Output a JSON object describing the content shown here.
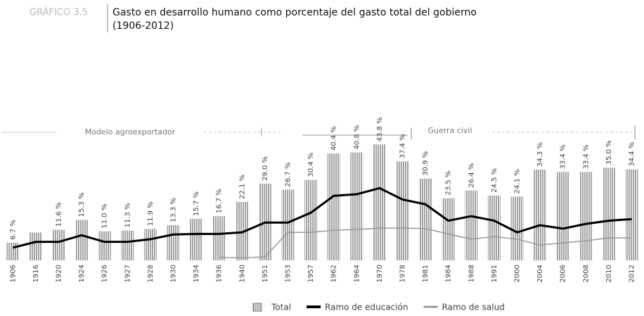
{
  "chart_data": {
    "type": "bar",
    "label": "GRÁFICO 3.5",
    "title": "Gasto en desarrollo humano como porcentaje del gasto total del gobierno",
    "subtitle": "(1906-2012)",
    "annotations": [
      "Modelo agroexportador",
      "Guerra civil"
    ],
    "categories": [
      "1906",
      "1916",
      "1920",
      "1924",
      "1926",
      "1927",
      "1928",
      "1930",
      "1934",
      "1936",
      "1940",
      "1951",
      "1953",
      "1957",
      "1962",
      "1964",
      "1970",
      "1978",
      "1981",
      "1984",
      "1988",
      "1991",
      "2000",
      "2004",
      "2006",
      "2008",
      "2010",
      "2012"
    ],
    "ylim": [
      0,
      46
    ],
    "series": [
      {
        "name": "Total",
        "type": "bar",
        "color": "#a3a3a3",
        "values": [
          6.7,
          10.5,
          11.6,
          15.3,
          11.0,
          11.3,
          11.9,
          13.3,
          15.7,
          16.7,
          22.1,
          29.0,
          26.7,
          30.4,
          40.4,
          40.8,
          43.8,
          37.4,
          30.9,
          23.5,
          26.4,
          24.5,
          24.1,
          34.3,
          33.4,
          33.4,
          35.0,
          34.4
        ],
        "value_labels": [
          "6.7 %",
          null,
          "11.6 %",
          "15.3 %",
          "11.0 %",
          "11.3 %",
          "11.9 %",
          "13.3 %",
          "15.7 %",
          "16.7 %",
          "22.1 %",
          "29.0 %",
          "26.7 %",
          "30.4 %",
          "40.4 %",
          "40.8 %",
          "43.8 %",
          "37.4 %",
          "30.9 %",
          "23.5 %",
          "26.4 %",
          "24.5 %",
          "24.1 %",
          "34.3 %",
          "33.4 %",
          "33.4 %",
          "35.0 %",
          "34.4 %"
        ]
      },
      {
        "name": "Ramo de educación",
        "type": "line",
        "color": "#000000",
        "values": [
          4.8,
          7,
          7,
          9.5,
          7,
          7,
          8,
          9.8,
          10,
          10,
          10.6,
          14.3,
          14.3,
          18,
          24.4,
          25,
          27.3,
          23,
          21.2,
          15,
          16.7,
          15,
          10.6,
          13.3,
          12,
          13.8,
          15,
          15.6
        ]
      },
      {
        "name": "Ramo de salud",
        "type": "line",
        "color": "#999999",
        "values": [
          null,
          null,
          null,
          null,
          null,
          null,
          null,
          null,
          null,
          1.1,
          1,
          1.3,
          10.6,
          10.6,
          11.4,
          11.7,
          12.2,
          12.2,
          12,
          10,
          8,
          9,
          8,
          5.8,
          6.6,
          7.4,
          8.5,
          8.5
        ]
      }
    ]
  }
}
